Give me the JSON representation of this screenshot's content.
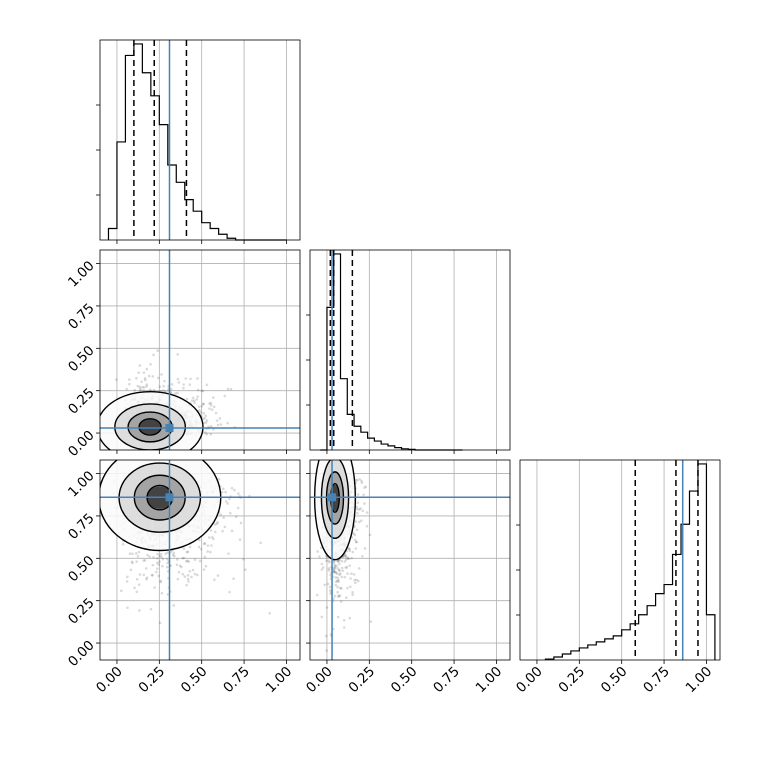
{
  "chart_data": {
    "type": "corner",
    "parameters": 3,
    "axis_range": [
      -0.1,
      1.08
    ],
    "tick_values": [
      0.0,
      0.25,
      0.5,
      0.75,
      1.0
    ],
    "tick_labels": [
      "0.00",
      "0.25",
      "0.50",
      "0.75",
      "1.00"
    ],
    "truths": [
      0.31,
      0.03,
      0.86
    ],
    "grid": true,
    "colors": {
      "truth": "#4682b4",
      "contour": "#000000",
      "points": "#555555"
    },
    "histograms": [
      {
        "bins": [
          -0.05,
          0.0,
          0.05,
          0.1,
          0.15,
          0.2,
          0.25,
          0.3,
          0.35,
          0.4,
          0.45,
          0.5,
          0.55,
          0.6,
          0.65,
          0.7,
          0.75,
          0.8,
          0.85,
          0.9,
          0.95,
          1.0
        ],
        "counts": [
          2,
          17,
          32,
          34,
          29,
          25,
          20,
          13,
          10,
          7,
          5,
          3,
          2,
          1,
          0.3,
          0,
          0,
          0,
          0,
          0,
          0
        ],
        "quantiles": [
          0.1,
          0.22,
          0.41
        ]
      },
      {
        "bins": [
          -0.04,
          0.0,
          0.04,
          0.08,
          0.12,
          0.16,
          0.2,
          0.24,
          0.28,
          0.32,
          0.36,
          0.4,
          0.44,
          0.48,
          0.52,
          0.56,
          0.6,
          0.64,
          0.68,
          0.72,
          0.76,
          0.8
        ],
        "counts": [
          0,
          24,
          33,
          12,
          6,
          4,
          3,
          2,
          1.5,
          1,
          0.7,
          0.4,
          0.2,
          0.1,
          0,
          0,
          0,
          0,
          0,
          0,
          0
        ],
        "quantiles": [
          0.02,
          0.04,
          0.15
        ]
      },
      {
        "bins": [
          0.05,
          0.1,
          0.15,
          0.2,
          0.25,
          0.3,
          0.35,
          0.4,
          0.45,
          0.5,
          0.55,
          0.6,
          0.65,
          0.7,
          0.75,
          0.8,
          0.85,
          0.9,
          0.95,
          1.0,
          1.05
        ],
        "counts": [
          0.3,
          1,
          2,
          3,
          4,
          5,
          6,
          7,
          8,
          10,
          12,
          15,
          18,
          22,
          25,
          35,
          45,
          56,
          65,
          15
        ],
        "quantiles": [
          0.58,
          0.82,
          0.95
        ]
      }
    ],
    "density_panels": [
      {
        "x_param": 0,
        "y_param": 1,
        "peak": [
          0.15,
          0.02
        ],
        "spread": [
          0.13,
          0.08
        ]
      },
      {
        "x_param": 0,
        "y_param": 2,
        "peak": [
          0.2,
          0.93
        ],
        "spread": [
          0.15,
          0.12
        ]
      },
      {
        "x_param": 1,
        "y_param": 2,
        "peak": [
          0.03,
          0.94
        ],
        "spread": [
          0.05,
          0.14
        ]
      }
    ]
  }
}
